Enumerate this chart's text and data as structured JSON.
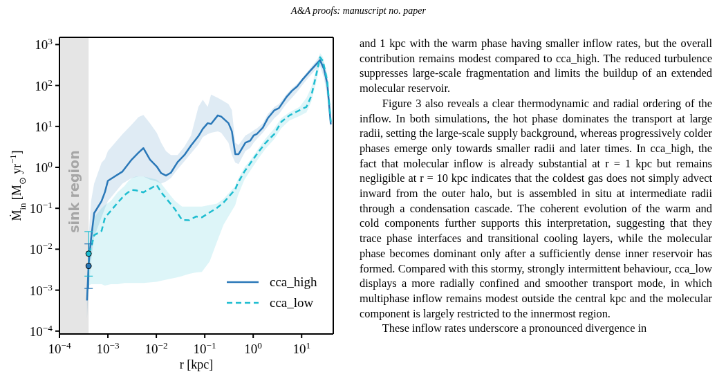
{
  "chart_data": {
    "type": "line",
    "xlabel": "r [kpc]",
    "ylabel": "Ṁ$_{in}$ [M$_{⊙}$ yr$^{−1}$]",
    "log": "xy",
    "xlim": [
      0.0001,
      45
    ],
    "ylim": [
      8.5e-05,
      1500
    ],
    "xticks": [
      {
        "value": 0.0001,
        "label": "10$^{−4}$"
      },
      {
        "value": 0.001,
        "label": "10$^{−3}$"
      },
      {
        "value": 0.01,
        "label": "10$^{−2}$"
      },
      {
        "value": 0.1,
        "label": "10$^{−1}$"
      },
      {
        "value": 1,
        "label": "10$^{0}$"
      },
      {
        "value": 10,
        "label": "10$^{1}$"
      }
    ],
    "yticks": [
      {
        "value": 0.0001,
        "label": "10$^{−4}$"
      },
      {
        "value": 0.001,
        "label": "10$^{−3}$"
      },
      {
        "value": 0.01,
        "label": "10$^{−2}$"
      },
      {
        "value": 0.1,
        "label": "10$^{−1}$"
      },
      {
        "value": 1,
        "label": "10$^{0}$"
      },
      {
        "value": 10,
        "label": "10$^{1}$"
      },
      {
        "value": 100,
        "label": "10$^{2}$"
      },
      {
        "value": 1000,
        "label": "10$^{3}$"
      }
    ],
    "legend": "bottom right",
    "marker": "none",
    "bands": [
      {
        "axis": "x",
        "from": 0.0001,
        "to": 0.0004,
        "label": "sink region",
        "color": "#e5e5e5"
      }
    ],
    "series": [
      {
        "name": "cca_high",
        "color": "#2a78b8",
        "line_style": "solid",
        "x": [
          0.00037,
          0.0004,
          0.00045,
          0.00052,
          0.00074,
          0.00087,
          0.001,
          0.002,
          0.0031,
          0.0043,
          0.0054,
          0.0074,
          0.0102,
          0.0126,
          0.0158,
          0.02,
          0.0275,
          0.038,
          0.052,
          0.074,
          0.091,
          0.115,
          0.135,
          0.186,
          0.219,
          0.309,
          0.363,
          0.427,
          0.5,
          0.69,
          0.87,
          1.02,
          1.2,
          1.58,
          2,
          2.75,
          3.4,
          4.8,
          6.3,
          8.1,
          10.2,
          14.1,
          20,
          24,
          29,
          34,
          40
        ],
        "values": [
          0.00056,
          0.0042,
          0.018,
          0.076,
          0.15,
          0.25,
          0.47,
          0.79,
          1.55,
          2.3,
          2.95,
          1.55,
          1.05,
          0.72,
          0.63,
          0.74,
          1.35,
          2,
          3.4,
          5.8,
          8.7,
          12,
          11.5,
          18.6,
          17.4,
          12,
          7.6,
          2.1,
          2.1,
          4,
          4.5,
          6,
          6.6,
          9.3,
          15.8,
          25,
          28,
          51,
          74,
          95,
          135,
          209,
          331,
          417,
          251,
          107,
          11.2
        ],
        "lower": [
          0.0002,
          0.001,
          0.005,
          0.02,
          0.06,
          0.1,
          0.15,
          0.4,
          0.55,
          0.6,
          0.6,
          0.5,
          0.45,
          0.4,
          0.45,
          0.55,
          0.9,
          1.4,
          2.2,
          3.6,
          5.5,
          6.5,
          7,
          7.6,
          7,
          4,
          2,
          1.3,
          1.2,
          2.5,
          3,
          4,
          5,
          7,
          10,
          16,
          20,
          35,
          50,
          70,
          100,
          160,
          250,
          300,
          150,
          50,
          8
        ],
        "upper": [
          0.001,
          0.02,
          0.15,
          0.4,
          1.3,
          1.6,
          2.5,
          6.5,
          11,
          17,
          19,
          12,
          7,
          4,
          2.5,
          2,
          2,
          3.2,
          6,
          30,
          45,
          30,
          60,
          50,
          45,
          35,
          25,
          4,
          3.5,
          6,
          7,
          8,
          9,
          12,
          20,
          30,
          35,
          60,
          85,
          110,
          150,
          240,
          400,
          550,
          350,
          180,
          20
        ]
      },
      {
        "name": "cca_low",
        "color": "#1ebdd0",
        "line_style": "dashed",
        "x": [
          0.0004,
          0.00045,
          0.00052,
          0.00074,
          0.00087,
          0.00115,
          0.0016,
          0.0022,
          0.0026,
          0.0031,
          0.0038,
          0.0054,
          0.0102,
          0.0126,
          0.02,
          0.0245,
          0.034,
          0.048,
          0.066,
          0.087,
          0.126,
          0.178,
          0.245,
          0.427,
          0.48,
          0.66,
          0.91,
          1.26,
          1.78,
          2.75,
          3.8,
          5.6,
          9.1,
          12.6,
          15.8,
          20,
          24,
          27.5,
          34,
          40
        ],
        "values": [
          0.0078,
          0.011,
          0.022,
          0.028,
          0.059,
          0.087,
          0.138,
          0.21,
          0.245,
          0.28,
          0.275,
          0.245,
          0.37,
          0.245,
          0.126,
          0.093,
          0.052,
          0.051,
          0.063,
          0.06,
          0.079,
          0.102,
          0.138,
          0.29,
          0.41,
          0.79,
          1.35,
          2.3,
          3.9,
          6.6,
          12.9,
          18.6,
          25,
          30,
          55,
          182,
          490,
          398,
          123,
          12.9
        ],
        "lower": [
          0.0013,
          0.0014,
          0.0014,
          0.0014,
          0.0013,
          0.0014,
          0.0014,
          0.0015,
          0.0015,
          0.0015,
          0.0015,
          0.0015,
          0.0016,
          0.0017,
          0.0019,
          0.002,
          0.0022,
          0.0025,
          0.0027,
          0.0028,
          0.005,
          0.015,
          0.04,
          0.12,
          0.2,
          0.5,
          0.9,
          1.6,
          2.8,
          5,
          9,
          14,
          18,
          22,
          40,
          120,
          350,
          300,
          80,
          9
        ],
        "upper": [
          0.01,
          0.03,
          0.06,
          0.1,
          0.12,
          0.15,
          0.25,
          0.35,
          0.45,
          0.55,
          0.6,
          0.6,
          0.5,
          0.4,
          0.2,
          0.15,
          0.11,
          0.11,
          0.11,
          0.11,
          0.12,
          0.13,
          0.17,
          0.35,
          0.5,
          1,
          1.6,
          2.8,
          5,
          9,
          16,
          22,
          30,
          50,
          90,
          250,
          620,
          500,
          180,
          20
        ]
      },
      {
        "type": "scatter",
        "color": "#1ebdd0",
        "marker": "circle",
        "x": [
          0.0004
        ],
        "values": [
          0.0078
        ],
        "errors": [
          [
            0.0022,
            0.027
          ]
        ]
      },
      {
        "type": "scatter",
        "color": "#2a78b8",
        "marker": "circle",
        "x": [
          0.0004
        ],
        "values": [
          0.0039
        ],
        "errors": [
          [
            0.0011,
            0.0135
          ]
        ]
      }
    ],
    "annotations": [
      "A&A proofs: manuscript no. paper",
      "and 1 kpc with the warm phase having smaller inflow rates, but the overall contribution remains modest compared to cca_high. The reduced turbulence suppresses large-scale fragmentation and limits the buildup of an extended molecular reservoir.",
      "Figure 3 also reveals a clear thermodynamic and radial ordering of the inflow. In both simulations, the hot phase dominates the transport at large radii, setting the large-scale supply background, whereas progressively colder phases emerge only towards smaller radii and later times. In cca_high, the fact that molecular inflow is already substantial at r = 1 kpc but remains negligible at r = 10 kpc indicates that the coldest gas does not simply advect inward from the outer halo, but is assembled in situ at intermediate radii through a condensation cascade. The coherent evolution of the warm and cold components further supports this interpretation, suggesting that they trace phase interfaces and transitional cooling layers, while the molecular phase becomes dominant only after a sufficiently dense inner reservoir has formed. Compared with this stormy, strongly intermittent behaviour, cca_low displays a more radially confined and smoother transport mode, in which multiphase inflow remains modest outside the central kpc and the molecular component is largely restricted to the innermost region.",
      "These inflow rates underscore a pronounced divergence in"
    ]
  }
}
